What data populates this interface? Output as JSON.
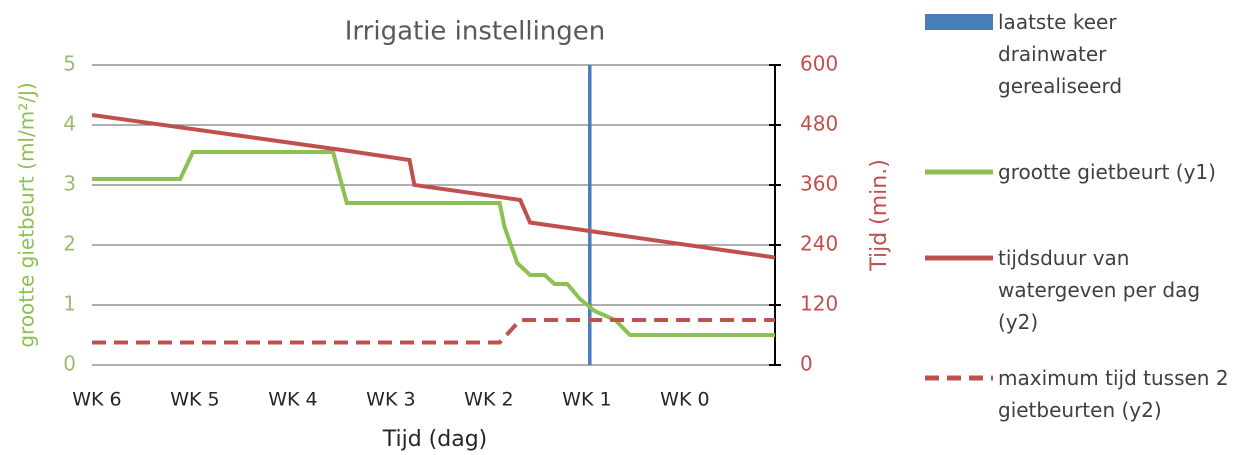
{
  "chart_data": {
    "type": "line",
    "title": "Irrigatie instellingen",
    "x_label": "Tijd (dag)",
    "y_label": "grootte gietbeurt  (ml/m²/J)",
    "y2_label": "Tijd (min.)",
    "xlim": [
      -0.05,
      6.92
    ],
    "xticks": [
      {
        "value": 0,
        "label": "WK 6"
      },
      {
        "value": 1,
        "label": "WK 5"
      },
      {
        "value": 2,
        "label": "WK 4"
      },
      {
        "value": 3,
        "label": "WK 3"
      },
      {
        "value": 4,
        "label": "WK 2"
      },
      {
        "value": 5,
        "label": "WK 1"
      },
      {
        "value": 6,
        "label": "WK 0"
      }
    ],
    "ylim": [
      0,
      5
    ],
    "yticks": [
      0,
      1,
      2,
      3,
      4,
      5
    ],
    "y2lim": [
      0,
      600
    ],
    "y2ticks": [
      0,
      120,
      240,
      360,
      480,
      600
    ],
    "grid": true,
    "series": [
      {
        "name": "laatste keer drainwater gerealiseerd",
        "color": "#4a7ebb",
        "style": "vline",
        "x": [
          5.03,
          5.03
        ],
        "values": [
          0,
          5
        ]
      },
      {
        "name": "grootte gietbeurt (y1)",
        "color": "#8cc152",
        "style": "solid",
        "x": [
          -0.05,
          0.85,
          0.98,
          2.41,
          2.55,
          4.11,
          4.16,
          4.29,
          4.42,
          4.57,
          4.67,
          4.8,
          4.93,
          5.08,
          5.29,
          5.44,
          6.92
        ],
        "values": [
          3.1,
          3.1,
          3.55,
          3.55,
          2.7,
          2.7,
          2.3,
          1.7,
          1.5,
          1.5,
          1.35,
          1.35,
          1.1,
          0.9,
          0.75,
          0.5,
          0.5
        ]
      },
      {
        "name": "tijdsduur van watergeven per dag (y2)",
        "color": "#c0504d",
        "style": "solid",
        "axis": "y2",
        "x": [
          -0.05,
          2.5,
          3.19,
          3.24,
          4.32,
          4.42,
          6.92
        ],
        "values": [
          500,
          430,
          410,
          360,
          330,
          285,
          215
        ]
      },
      {
        "name": "maximum tijd tussen 2 gietbeurten (y2)",
        "color": "#c0504d",
        "style": "dashed",
        "axis": "y2",
        "x": [
          -0.05,
          4.11,
          4.32,
          6.92
        ],
        "values": [
          45,
          45,
          90,
          90
        ]
      }
    ]
  }
}
